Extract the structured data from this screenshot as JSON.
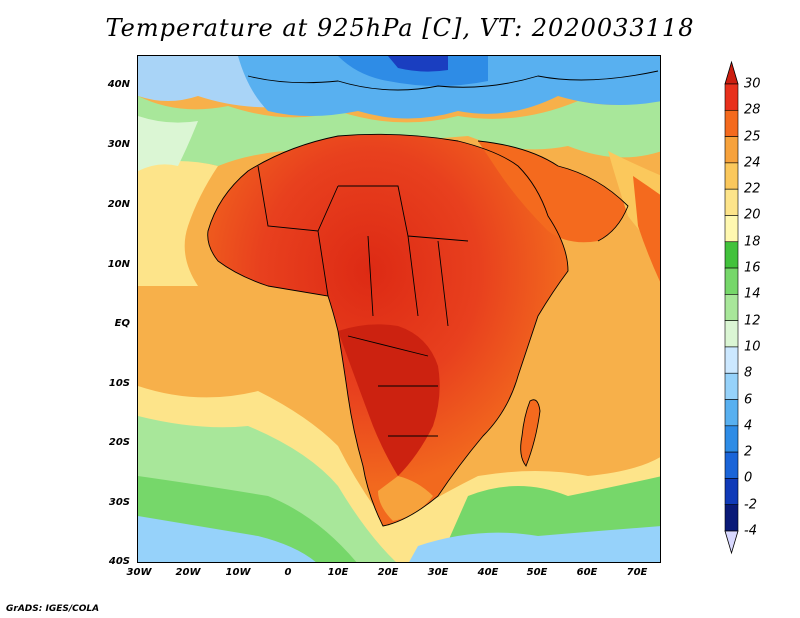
{
  "title": "Temperature at 925hPa [C], VT: 2020033118",
  "credit": "GrADS: IGES/COLA",
  "latitude_labels": [
    "40N",
    "30N",
    "20N",
    "10N",
    "EQ",
    "10S",
    "20S",
    "30S",
    "40S"
  ],
  "longitude_labels": [
    "30W",
    "20W",
    "10W",
    "0",
    "10E",
    "20E",
    "30E",
    "40E",
    "50E",
    "60E",
    "70E"
  ],
  "extent": {
    "lon_min": -30,
    "lon_max": 75,
    "lat_min": -40,
    "lat_max": 45
  },
  "colorbar": {
    "labels": [
      "30",
      "28",
      "25",
      "24",
      "22",
      "20",
      "18",
      "16",
      "14",
      "12",
      "10",
      "8",
      "6",
      "4",
      "2",
      "0",
      "-2",
      "-4"
    ],
    "colors": [
      "#e8301c",
      "#f46a1e",
      "#f7a23c",
      "#fbc85c",
      "#fde48a",
      "#fff8b0",
      "#42c23c",
      "#76d76a",
      "#a8e79a",
      "#dbf6d4",
      "#cce8ff",
      "#96d2fa",
      "#58b0f0",
      "#2e8ce6",
      "#1a64d8",
      "#103ab8",
      "#0a1a78"
    ]
  },
  "map_type": "filled-contour temperature map over Africa with country boundaries"
}
